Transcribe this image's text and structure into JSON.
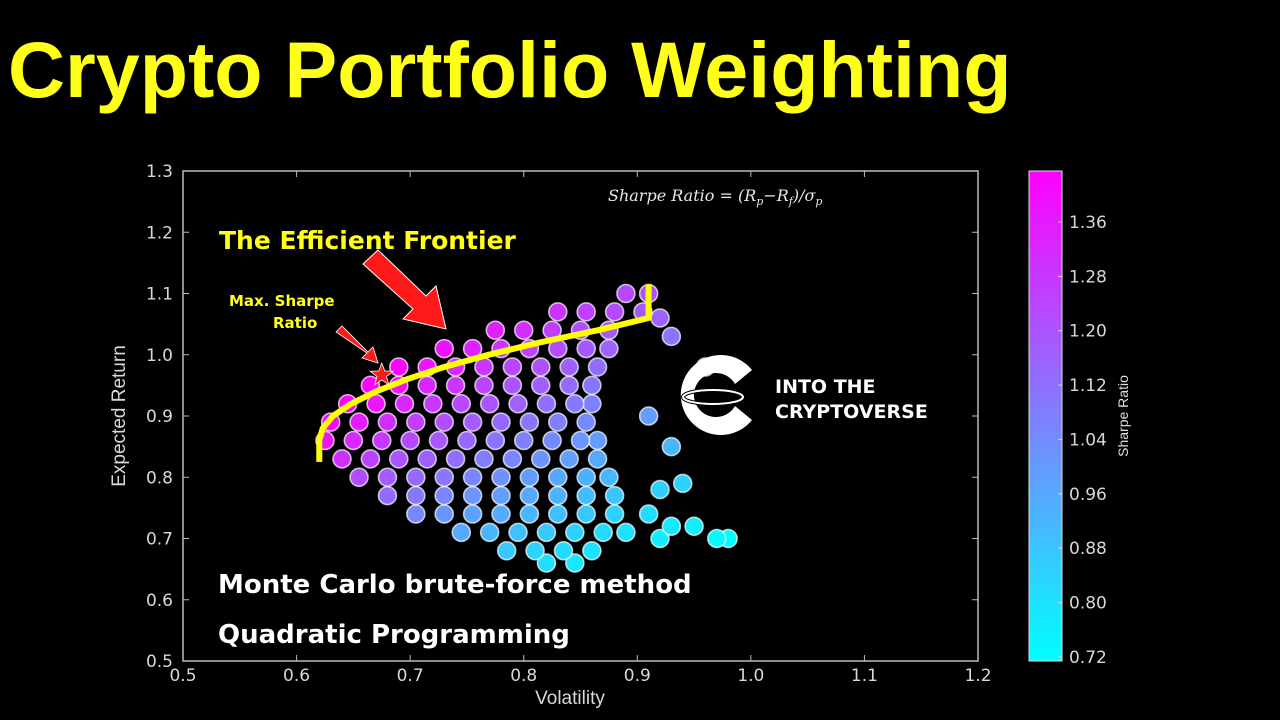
{
  "title": "Crypto Portfolio Weighting",
  "formula": {
    "lhs": "Sharpe Ratio = (R",
    "p": "p",
    "minus": "−R",
    "f": "f",
    "div": ")/σ",
    "sigma_sub": "p"
  },
  "annotations": {
    "frontier_label": "The Efficient Frontier",
    "max_sharpe_line1": "Max. Sharpe",
    "max_sharpe_line2": "Ratio"
  },
  "methods": [
    "Monte Carlo brute-force method",
    "Quadratic Programming"
  ],
  "logo": {
    "line1": "INTO THE",
    "line2": "CRYPTOVERSE"
  },
  "colors": {
    "title": "#ffff1a",
    "frontier": "#ffff00",
    "arrow": "#ff1a1a",
    "cmap_low": "#00ffff",
    "cmap_high": "#ff00ff"
  },
  "chart_data": {
    "type": "scatter",
    "xlabel": "Volatility",
    "ylabel": "Expected Return",
    "xlim": [
      0.5,
      1.2
    ],
    "ylim": [
      0.5,
      1.3
    ],
    "xticks": [
      "0.5",
      "0.6",
      "0.7",
      "0.8",
      "0.9",
      "1.0",
      "1.1",
      "1.2"
    ],
    "yticks": [
      "0.5",
      "0.6",
      "0.7",
      "0.8",
      "0.9",
      "1.0",
      "1.1",
      "1.2",
      "1.3"
    ],
    "colorbar": {
      "label": "Sharpe Ratio",
      "range": [
        0.714,
        1.435
      ],
      "ticks": [
        "0.72",
        "0.80",
        "0.88",
        "0.96",
        "1.04",
        "1.12",
        "1.20",
        "1.28",
        "1.36"
      ],
      "colormap": "cool"
    },
    "color_value": "Sharpe Ratio = Expected Return / Volatility",
    "points_rows": [
      {
        "y": 1.1,
        "x": [
          0.89,
          0.91
        ]
      },
      {
        "y": 1.07,
        "x": [
          0.83,
          0.855,
          0.88,
          0.905
        ]
      },
      {
        "y": 1.04,
        "x": [
          0.775,
          0.8,
          0.825,
          0.85,
          0.875
        ]
      },
      {
        "y": 1.01,
        "x": [
          0.73,
          0.755,
          0.78,
          0.805,
          0.83,
          0.855,
          0.875
        ]
      },
      {
        "y": 0.98,
        "x": [
          0.69,
          0.715,
          0.74,
          0.765,
          0.79,
          0.815,
          0.84,
          0.865
        ]
      },
      {
        "y": 0.95,
        "x": [
          0.665,
          0.69,
          0.715,
          0.74,
          0.765,
          0.79,
          0.815,
          0.84,
          0.86
        ]
      },
      {
        "y": 0.92,
        "x": [
          0.645,
          0.67,
          0.695,
          0.72,
          0.745,
          0.77,
          0.795,
          0.82,
          0.845,
          0.86
        ]
      },
      {
        "y": 0.89,
        "x": [
          0.63,
          0.655,
          0.68,
          0.705,
          0.73,
          0.755,
          0.78,
          0.805,
          0.83,
          0.855
        ]
      },
      {
        "y": 0.86,
        "x": [
          0.625,
          0.65,
          0.675,
          0.7,
          0.725,
          0.75,
          0.775,
          0.8,
          0.825,
          0.85,
          0.865
        ]
      },
      {
        "y": 0.83,
        "x": [
          0.64,
          0.665,
          0.69,
          0.715,
          0.74,
          0.765,
          0.79,
          0.815,
          0.84,
          0.865
        ]
      },
      {
        "y": 0.8,
        "x": [
          0.655,
          0.68,
          0.705,
          0.73,
          0.755,
          0.78,
          0.805,
          0.83,
          0.855,
          0.875
        ]
      },
      {
        "y": 0.77,
        "x": [
          0.68,
          0.705,
          0.73,
          0.755,
          0.78,
          0.805,
          0.83,
          0.855,
          0.88
        ]
      },
      {
        "y": 0.74,
        "x": [
          0.705,
          0.73,
          0.755,
          0.78,
          0.805,
          0.83,
          0.855,
          0.88
        ]
      },
      {
        "y": 0.71,
        "x": [
          0.745,
          0.77,
          0.795,
          0.82,
          0.845,
          0.87,
          0.89
        ]
      },
      {
        "y": 0.68,
        "x": [
          0.785,
          0.81,
          0.835,
          0.86
        ]
      },
      {
        "y": 0.66,
        "x": [
          0.82,
          0.845
        ]
      }
    ],
    "outliers": [
      [
        0.97,
        0.7
      ],
      [
        0.98,
        0.7
      ],
      [
        0.93,
        0.72
      ],
      [
        0.95,
        0.72
      ],
      [
        0.91,
        0.74
      ],
      [
        0.92,
        0.7
      ],
      [
        0.94,
        0.79
      ],
      [
        0.93,
        0.85
      ],
      [
        0.96,
        0.98
      ],
      [
        0.93,
        1.03
      ],
      [
        0.92,
        1.06
      ],
      [
        0.91,
        0.9
      ],
      [
        0.92,
        0.78
      ]
    ],
    "efficient_frontier": [
      [
        0.62,
        0.86
      ],
      [
        0.623,
        0.88
      ],
      [
        0.632,
        0.9
      ],
      [
        0.648,
        0.92
      ],
      [
        0.67,
        0.94
      ],
      [
        0.697,
        0.96
      ],
      [
        0.73,
        0.98
      ],
      [
        0.769,
        1.0
      ],
      [
        0.814,
        1.02
      ],
      [
        0.865,
        1.04
      ],
      [
        0.91,
        1.06
      ]
    ],
    "frontier_end": [
      0.91,
      1.115
    ],
    "max_sharpe_point": [
      0.675,
      0.967
    ]
  }
}
